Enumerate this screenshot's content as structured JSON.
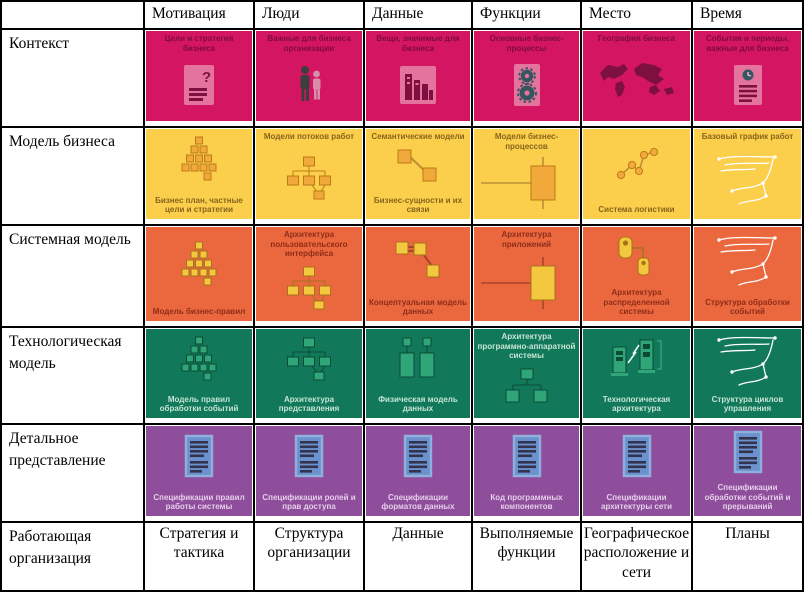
{
  "table": {
    "corner": "",
    "columns": [
      "Мотивация",
      "Люди",
      "Данные",
      "Функции",
      "Место",
      "Время"
    ],
    "rows": [
      {
        "label": "Контекст",
        "color": "#D41562",
        "text_color": "#7E0B3B",
        "icon_colors": {
          "f": "#E4739E",
          "s": "#7E1040",
          "l": "#9C2B57"
        },
        "cells": [
          {
            "top": "Цели и стратегия бизнеса",
            "icon": "document-question-icon"
          },
          {
            "top": "Важные для бизнеса организации",
            "icon": "people-icon"
          },
          {
            "top": "Вещи, значимые для бизнеса",
            "icon": "buildings-icon"
          },
          {
            "top": "Основные бизнес-процессы",
            "icon": "gears-panel-icon"
          },
          {
            "top": "География бизнеса",
            "icon": "world-map-icon"
          },
          {
            "top": "События и периоды, важные для бизнеса",
            "icon": "document-clock-icon"
          }
        ]
      },
      {
        "label": "Модель бизнеса",
        "color": "#FBCE4C",
        "text_color": "#86651B",
        "icon_colors": {
          "f": "#F2A93B",
          "s": "#BB7C14",
          "l": "#BC9034"
        },
        "cells": [
          {
            "bottom": "Бизнес план, частные цели и стратегии",
            "icon": "pyramid-icon"
          },
          {
            "top": "Модели потоков работ",
            "icon": "org-chart-icon"
          },
          {
            "top": "Семантические модели",
            "bottom": "Бизнес-сущности и их связи",
            "icon": "linked-boxes-2-icon"
          },
          {
            "top": "Модели бизнес-процессов",
            "icon": "process-rect-icon"
          },
          {
            "bottom": "Система логистики",
            "icon": "network-nodes-icon"
          },
          {
            "top": "Базовый график работ",
            "icon": "sketch-icon"
          }
        ]
      },
      {
        "label": "Системная модель",
        "color": "#EB683F",
        "text_color": "#8E2D18",
        "icon_colors": {
          "f": "#F3C73E",
          "s": "#A8721A",
          "l": "#A8442B"
        },
        "cells": [
          {
            "bottom": "Модель бизнес-правил",
            "icon": "pyramid-icon"
          },
          {
            "top": "Архитектура пользовательского интерфейса",
            "icon": "org-chart-icon"
          },
          {
            "bottom": "Концептуальная модель данных",
            "icon": "linked-boxes-3-icon"
          },
          {
            "top": "Архитектура приложений",
            "icon": "process-rect-icon"
          },
          {
            "bottom": "Архитектура распределенной системы",
            "icon": "devices-linked-icon"
          },
          {
            "bottom": "Структура обработки событий",
            "icon": "sketch-icon"
          }
        ]
      },
      {
        "label": "Технологическая модель",
        "color": "#11795A",
        "text_color": "#C6E4D4",
        "icon_colors": {
          "f": "#2FA578",
          "s": "#0A4A36",
          "l": "#A5D8C3"
        },
        "cells": [
          {
            "bottom": "Модель правил обработки событий",
            "icon": "pyramid-icon"
          },
          {
            "bottom": "Архитектура представления",
            "icon": "org-chart-icon"
          },
          {
            "bottom": "Физическая модель данных",
            "icon": "database-pair-icon"
          },
          {
            "top": "Архитектура программно-аппаратной системы",
            "icon": "hardware-tree-icon"
          },
          {
            "bottom": "Технологическая архитектура",
            "icon": "computers-lightning-icon"
          },
          {
            "bottom": "Структура циклов управления",
            "icon": "sketch-icon"
          }
        ]
      },
      {
        "label": "Детальное представление",
        "color": "#8F4E9C",
        "text_color": "#E4CEE9",
        "icon_colors": {
          "f": "#6B92CE",
          "s": "#8FB0DC",
          "l": "#33334E"
        },
        "cells": [
          {
            "bottom": "Спецификации правил работы системы",
            "icon": "document-lines-icon"
          },
          {
            "bottom": "Спецификации ролей и прав доступа",
            "icon": "document-lines-icon"
          },
          {
            "bottom": "Спецификации форматов данных",
            "icon": "document-lines-icon"
          },
          {
            "bottom": "Код программных компонентов",
            "icon": "document-lines-icon"
          },
          {
            "bottom": "Спецификации архитектуры сети",
            "icon": "document-lines-icon"
          },
          {
            "bottom": "Спецификации обработки событий и прерываний",
            "icon": "document-lines-icon"
          }
        ]
      }
    ],
    "footer": {
      "label": "Работающая организация",
      "cells": [
        "Стратегия и тактика",
        "Структура организации",
        "Данные",
        "Выполняемые функции",
        "Географическое расположение и сети",
        "Планы"
      ]
    }
  }
}
